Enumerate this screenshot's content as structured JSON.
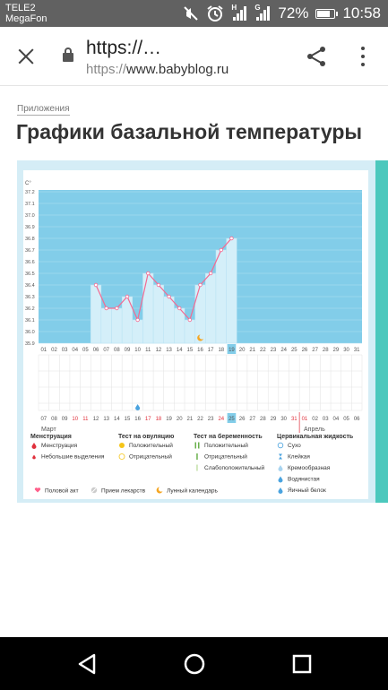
{
  "status_bar": {
    "carrier_1": "TELE2",
    "carrier_2": "MegaFon",
    "network_1": "H",
    "network_2": "G",
    "battery": "72%",
    "time": "10:58"
  },
  "browser": {
    "url_title": "https://…",
    "url_scheme": "https://",
    "url_host": "www.babyblog.ru"
  },
  "page": {
    "breadcrumb": "Приложения",
    "title": "Графики базальной температуры"
  },
  "chart_data": {
    "type": "line",
    "ylabel": "C°",
    "y_ticks": [
      "35.9",
      "36.0",
      "36.1",
      "36.2",
      "36.3",
      "36.4",
      "36.5",
      "36.6",
      "36.7",
      "36.8",
      "36.9",
      "37.0",
      "37.1",
      "37.2"
    ],
    "ylim": [
      35.9,
      37.2
    ],
    "cycle_days": [
      "01",
      "02",
      "03",
      "04",
      "05",
      "06",
      "07",
      "08",
      "09",
      "10",
      "11",
      "12",
      "13",
      "14",
      "15",
      "16",
      "17",
      "18",
      "19",
      "20",
      "21",
      "22",
      "23",
      "24",
      "25",
      "26",
      "27",
      "28",
      "29",
      "30",
      "31"
    ],
    "highlight_day": "19",
    "series": [
      {
        "x": [
          6,
          7,
          8,
          9,
          10,
          11,
          12,
          13,
          14,
          15,
          16,
          17,
          18,
          19
        ],
        "values": [
          36.4,
          36.2,
          36.2,
          36.3,
          36.1,
          36.5,
          36.4,
          36.3,
          36.2,
          36.1,
          36.4,
          36.5,
          36.7,
          36.8
        ]
      }
    ],
    "dates": [
      "07",
      "08",
      "09",
      "10",
      "11",
      "12",
      "13",
      "14",
      "15",
      "16",
      "17",
      "18",
      "19",
      "20",
      "21",
      "22",
      "23",
      "24",
      "25",
      "26",
      "27",
      "28",
      "29",
      "30",
      "31",
      "01",
      "02",
      "03",
      "04",
      "05",
      "06"
    ],
    "red_dates": [
      "10",
      "11",
      "17",
      "18",
      "24",
      "31",
      "01"
    ],
    "highlight_date": "25",
    "month_1": "Март",
    "month_2": "Апрель",
    "moon_day": 16,
    "drop_day": 10,
    "legend": {
      "col1_title": "Менструация",
      "col1_items": [
        "Менструация",
        "Небольшие выделения"
      ],
      "col2_title": "Тест на овуляцию",
      "col2_items": [
        "Положительный",
        "Отрицательный"
      ],
      "col3_title": "Тест на беременность",
      "col3_items": [
        "Положительный",
        "Отрицательный",
        "Слабоположительный"
      ],
      "col4_title": "Цервикальная жидкость",
      "col4_items": [
        "Сухо",
        "Клейкая",
        "Кремообразная",
        "Водянистая",
        "Яичный белок"
      ],
      "extra_items": [
        "Половой акт",
        "Прием лекарств",
        "Лунный календарь"
      ]
    },
    "colors": {
      "plot_bg": "#82cde9",
      "bar_fill": "#d4eff9",
      "line": "#f36a92",
      "accent": "#ff5f8a"
    }
  }
}
